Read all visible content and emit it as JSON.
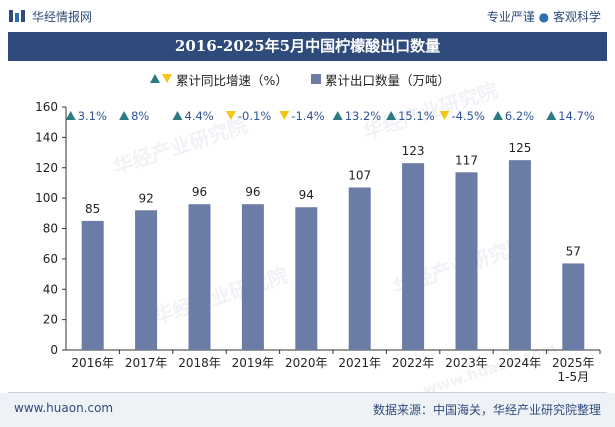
{
  "header": {
    "brand": "华经情报网",
    "tagline_left": "专业严谨",
    "tagline_sep": "●",
    "tagline_right": "客观科学"
  },
  "footer": {
    "website": "www.huaon.com",
    "source": "数据来源：中国海关，华经产业研究院整理"
  },
  "watermark": {
    "text": "华经产业研究院",
    "url": "www.huaon.com"
  },
  "colors": {
    "title_bg": "#2f4b7c",
    "bar": "#6b7ca6",
    "up": "#2e7a83",
    "down": "#f5c518",
    "growth_text": "#2f5597"
  },
  "chart_data": {
    "type": "bar",
    "title": "2016-2025年5月中国柠檬酸出口数量",
    "categories": [
      "2016年",
      "2017年",
      "2018年",
      "2019年",
      "2020年",
      "2021年",
      "2022年",
      "2023年",
      "2024年",
      "2025年\n1-5月"
    ],
    "series": [
      {
        "name": "累计出口数量（万吨）",
        "values": [
          85,
          92,
          96,
          96,
          94,
          107,
          123,
          117,
          125,
          57
        ]
      },
      {
        "name": "累计同比增速（%）",
        "values": [
          3.1,
          8,
          4.4,
          -0.1,
          -1.4,
          13.2,
          15.1,
          -4.5,
          6.2,
          14.7
        ],
        "labels": [
          "3.1%",
          "8%",
          "4.4%",
          "-0.1%",
          "-1.4%",
          "13.2%",
          "15.1%",
          "-4.5%",
          "6.2%",
          "14.7%"
        ]
      }
    ],
    "y_ticks": [
      0,
      20,
      40,
      60,
      80,
      100,
      120,
      140,
      160
    ],
    "ylim": [
      0,
      160
    ],
    "xlabel": "",
    "ylabel": "",
    "legend": {
      "position": "top-center",
      "growth_label": "累计同比增速（%）",
      "volume_label": "累计出口数量（万吨）"
    }
  }
}
